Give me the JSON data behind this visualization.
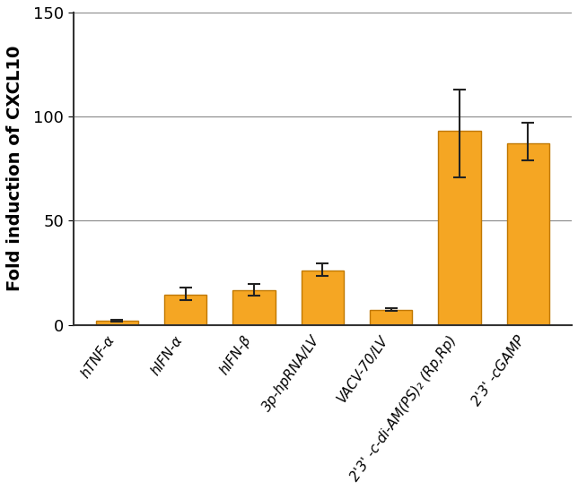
{
  "categories": [
    "hTNF-α",
    "hIFN-α",
    "hIFN-β",
    "3p-hpRNA/LV",
    "VACV-70/LV",
    "2'3' -c-di-AM(PS)₂ (Rp,Rp)",
    "2'3' -cGAMP"
  ],
  "values": [
    2.0,
    14.5,
    16.5,
    26.0,
    7.0,
    93.0,
    87.0
  ],
  "errors_upper": [
    0.5,
    3.5,
    3.0,
    3.5,
    0.8,
    20.0,
    10.0
  ],
  "errors_lower": [
    0.5,
    2.5,
    2.5,
    2.5,
    0.5,
    22.0,
    8.0
  ],
  "bar_color": "#F5A623",
  "edge_color": "#C07800",
  "ylabel": "Fold induction of CXCL10",
  "ylim": [
    0,
    150
  ],
  "yticks": [
    0,
    50,
    100,
    150
  ],
  "grid_color": "#888888",
  "background_color": "#ffffff",
  "bar_width": 0.62,
  "capsize": 5,
  "error_color": "#222222",
  "error_linewidth": 1.5,
  "ylabel_fontsize": 14,
  "ytick_fontsize": 13,
  "xtick_fontsize": 11,
  "xtick_rotation": 55
}
